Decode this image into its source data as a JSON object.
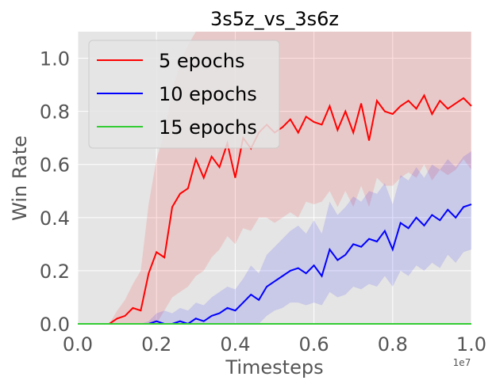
{
  "chart_data": {
    "type": "line",
    "title": "3s5z_vs_3s6z",
    "xlabel": "Timesteps",
    "ylabel": "Win Rate",
    "x_offset_label": "1e7",
    "xlim": [
      0.0,
      1.0
    ],
    "ylim": [
      0.0,
      1.1
    ],
    "xticks": [
      "0.0",
      "0.2",
      "0.4",
      "0.6",
      "0.8",
      "1.0"
    ],
    "yticks": [
      "0.0",
      "0.2",
      "0.4",
      "0.6",
      "0.8",
      "1.0"
    ],
    "grid": true,
    "legend_position": "upper-left",
    "background_color": "#e5e5e5",
    "x": [
      0.0,
      0.02,
      0.04,
      0.06,
      0.08,
      0.1,
      0.12,
      0.14,
      0.16,
      0.18,
      0.2,
      0.22,
      0.24,
      0.26,
      0.28,
      0.3,
      0.32,
      0.34,
      0.36,
      0.38,
      0.4,
      0.42,
      0.44,
      0.46,
      0.48,
      0.5,
      0.52,
      0.54,
      0.56,
      0.58,
      0.6,
      0.62,
      0.64,
      0.66,
      0.68,
      0.7,
      0.72,
      0.74,
      0.76,
      0.78,
      0.8,
      0.82,
      0.84,
      0.86,
      0.88,
      0.9,
      0.92,
      0.94,
      0.96,
      0.98,
      1.0
    ],
    "series": [
      {
        "name": "5 epochs",
        "color": "#ff0000",
        "values": [
          0.0,
          0.0,
          0.0,
          0.0,
          0.0,
          0.02,
          0.03,
          0.06,
          0.05,
          0.19,
          0.27,
          0.25,
          0.44,
          0.49,
          0.51,
          0.62,
          0.55,
          0.63,
          0.59,
          0.68,
          0.55,
          0.7,
          0.66,
          0.72,
          0.75,
          0.72,
          0.74,
          0.77,
          0.72,
          0.78,
          0.76,
          0.75,
          0.82,
          0.73,
          0.8,
          0.72,
          0.83,
          0.69,
          0.84,
          0.8,
          0.79,
          0.82,
          0.84,
          0.81,
          0.86,
          0.79,
          0.84,
          0.81,
          0.83,
          0.85,
          0.82
        ],
        "lower": [
          0.0,
          0.0,
          0.0,
          0.0,
          0.0,
          0.0,
          0.0,
          0.0,
          0.0,
          0.0,
          0.0,
          0.05,
          0.1,
          0.12,
          0.14,
          0.18,
          0.2,
          0.25,
          0.28,
          0.33,
          0.3,
          0.36,
          0.35,
          0.4,
          0.4,
          0.38,
          0.4,
          0.42,
          0.4,
          0.46,
          0.45,
          0.46,
          0.5,
          0.44,
          0.5,
          0.44,
          0.52,
          0.44,
          0.55,
          0.52,
          0.52,
          0.55,
          0.57,
          0.55,
          0.6,
          0.54,
          0.58,
          0.56,
          0.58,
          0.62,
          0.58
        ],
        "upper": [
          0.0,
          0.0,
          0.0,
          0.0,
          0.0,
          0.05,
          0.09,
          0.15,
          0.2,
          0.45,
          0.62,
          0.72,
          0.88,
          0.98,
          1.05,
          1.1,
          1.1,
          1.1,
          1.1,
          1.1,
          1.1,
          1.1,
          1.1,
          1.1,
          1.1,
          1.1,
          1.1,
          1.1,
          1.1,
          1.1,
          1.1,
          1.1,
          1.1,
          1.1,
          1.1,
          1.1,
          1.1,
          1.1,
          1.1,
          1.1,
          1.1,
          1.1,
          1.1,
          1.1,
          1.1,
          1.1,
          1.1,
          1.1,
          1.1,
          1.1,
          1.1
        ]
      },
      {
        "name": "10 epochs",
        "color": "#0000ff",
        "values": [
          0.0,
          0.0,
          0.0,
          0.0,
          0.0,
          0.0,
          0.0,
          0.0,
          0.0,
          0.0,
          0.01,
          0.0,
          0.0,
          0.01,
          0.0,
          0.02,
          0.01,
          0.03,
          0.04,
          0.06,
          0.05,
          0.08,
          0.11,
          0.09,
          0.14,
          0.16,
          0.18,
          0.2,
          0.21,
          0.19,
          0.22,
          0.18,
          0.28,
          0.24,
          0.26,
          0.3,
          0.29,
          0.32,
          0.31,
          0.35,
          0.28,
          0.38,
          0.36,
          0.4,
          0.37,
          0.41,
          0.39,
          0.43,
          0.4,
          0.44,
          0.45
        ],
        "lower": [
          0.0,
          0.0,
          0.0,
          0.0,
          0.0,
          0.0,
          0.0,
          0.0,
          0.0,
          0.0,
          0.0,
          0.0,
          0.0,
          0.0,
          0.0,
          0.0,
          0.0,
          0.0,
          0.0,
          0.0,
          0.0,
          0.0,
          0.0,
          0.0,
          0.03,
          0.05,
          0.06,
          0.08,
          0.08,
          0.07,
          0.08,
          0.07,
          0.12,
          0.1,
          0.11,
          0.14,
          0.13,
          0.15,
          0.14,
          0.18,
          0.14,
          0.2,
          0.18,
          0.22,
          0.2,
          0.23,
          0.21,
          0.26,
          0.23,
          0.27,
          0.28
        ],
        "upper": [
          0.0,
          0.0,
          0.0,
          0.0,
          0.0,
          0.0,
          0.0,
          0.0,
          0.0,
          0.01,
          0.04,
          0.05,
          0.04,
          0.06,
          0.05,
          0.08,
          0.07,
          0.1,
          0.12,
          0.14,
          0.13,
          0.17,
          0.22,
          0.19,
          0.26,
          0.29,
          0.32,
          0.35,
          0.37,
          0.34,
          0.39,
          0.34,
          0.46,
          0.41,
          0.44,
          0.48,
          0.46,
          0.5,
          0.49,
          0.53,
          0.45,
          0.56,
          0.54,
          0.59,
          0.55,
          0.6,
          0.58,
          0.62,
          0.59,
          0.63,
          0.65
        ]
      },
      {
        "name": "15 epochs",
        "color": "#33cc33",
        "values": [
          0.0,
          0.0,
          0.0,
          0.0,
          0.0,
          0.0,
          0.0,
          0.0,
          0.0,
          0.0,
          0.0,
          0.0,
          0.0,
          0.0,
          0.0,
          0.0,
          0.0,
          0.0,
          0.0,
          0.0,
          0.0,
          0.0,
          0.0,
          0.0,
          0.0,
          0.0,
          0.0,
          0.0,
          0.0,
          0.0,
          0.0,
          0.0,
          0.0,
          0.0,
          0.0,
          0.0,
          0.0,
          0.0,
          0.0,
          0.0,
          0.0,
          0.0,
          0.0,
          0.0,
          0.0,
          0.0,
          0.0,
          0.0,
          0.0,
          0.0,
          0.0
        ],
        "lower": [
          0.0,
          0.0,
          0.0,
          0.0,
          0.0,
          0.0,
          0.0,
          0.0,
          0.0,
          0.0,
          0.0,
          0.0,
          0.0,
          0.0,
          0.0,
          0.0,
          0.0,
          0.0,
          0.0,
          0.0,
          0.0,
          0.0,
          0.0,
          0.0,
          0.0,
          0.0,
          0.0,
          0.0,
          0.0,
          0.0,
          0.0,
          0.0,
          0.0,
          0.0,
          0.0,
          0.0,
          0.0,
          0.0,
          0.0,
          0.0,
          0.0,
          0.0,
          0.0,
          0.0,
          0.0,
          0.0,
          0.0,
          0.0,
          0.0,
          0.0,
          0.0
        ],
        "upper": [
          0.0,
          0.0,
          0.0,
          0.0,
          0.0,
          0.0,
          0.0,
          0.0,
          0.0,
          0.0,
          0.0,
          0.0,
          0.0,
          0.0,
          0.0,
          0.0,
          0.0,
          0.0,
          0.0,
          0.0,
          0.0,
          0.0,
          0.0,
          0.0,
          0.0,
          0.0,
          0.0,
          0.0,
          0.0,
          0.0,
          0.0,
          0.0,
          0.0,
          0.0,
          0.0,
          0.0,
          0.0,
          0.0,
          0.0,
          0.0,
          0.0,
          0.0,
          0.0,
          0.0,
          0.0,
          0.0,
          0.0,
          0.0,
          0.0,
          0.0,
          0.0
        ]
      }
    ]
  }
}
